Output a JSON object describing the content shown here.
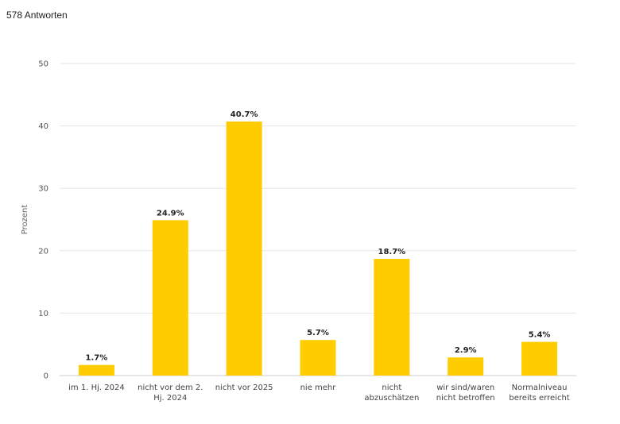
{
  "header": {
    "responses": "578 Antworten"
  },
  "chart_data": {
    "type": "bar",
    "title": "",
    "xlabel": "",
    "ylabel": "Prozent",
    "ylim": [
      0,
      50
    ],
    "yticks": [
      0,
      10,
      20,
      30,
      40,
      50
    ],
    "grid": true,
    "color": "#FFCC00",
    "categories": [
      [
        "im 1. Hj. 2024"
      ],
      [
        "nicht vor dem 2.",
        "Hj. 2024"
      ],
      [
        "nicht vor 2025"
      ],
      [
        "nie mehr"
      ],
      [
        "nicht",
        "abzuschätzen"
      ],
      [
        "wir sind/waren",
        "nicht betroffen"
      ],
      [
        "Normalniveau",
        "bereits erreicht"
      ]
    ],
    "values": [
      1.7,
      24.9,
      40.7,
      5.7,
      18.7,
      2.9,
      5.4
    ],
    "data_labels": [
      "1.7%",
      "24.9%",
      "40.7%",
      "5.7%",
      "18.7%",
      "2.9%",
      "5.4%"
    ]
  }
}
